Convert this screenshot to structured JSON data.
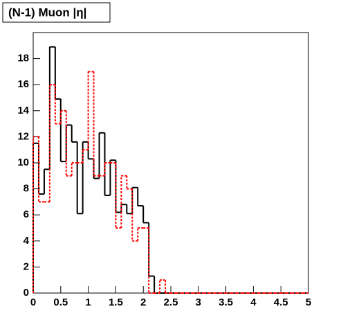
{
  "chart_data": {
    "type": "histogram",
    "title": "(N-1) Muon |η|",
    "bins": [
      0,
      0.1,
      0.2,
      0.3,
      0.4,
      0.5,
      0.6,
      0.7,
      0.8,
      0.9,
      1,
      1.1,
      1.2,
      1.3,
      1.4,
      1.5,
      1.6,
      1.7,
      1.8,
      1.9,
      2,
      2.1,
      2.2,
      2.3,
      2.4,
      2.5,
      2.6,
      2.7,
      2.8,
      2.9,
      3,
      3.1,
      3.2,
      3.3,
      3.4,
      3.5,
      3.6,
      3.7,
      3.8,
      3.9,
      4,
      4.1,
      4.2,
      4.3,
      4.4,
      4.5,
      4.6,
      4.7,
      4.8,
      4.9,
      5
    ],
    "series": [
      {
        "color": "#000000",
        "dash": false,
        "values": [
          11.5,
          7.6,
          9.5,
          18.9,
          14.9,
          10.1,
          12.9,
          11.6,
          6.1,
          11.6,
          10.3,
          8.8,
          12.3,
          7.5,
          10.2,
          6.2,
          6.8,
          6.1,
          8.1,
          6.7,
          5.4,
          1.3,
          0,
          0,
          0,
          0,
          0,
          0,
          0,
          0,
          0,
          0,
          0,
          0,
          0,
          0,
          0,
          0,
          0,
          0,
          0,
          0,
          0,
          0,
          0,
          0,
          0,
          0,
          0,
          0
        ]
      },
      {
        "color": "#ff0000",
        "dash": true,
        "values": [
          12,
          7,
          7,
          16,
          13,
          14,
          9,
          10,
          10,
          11,
          17,
          9,
          9,
          10,
          10,
          5,
          9,
          8,
          4,
          5,
          5,
          0,
          0,
          1,
          0,
          0,
          0,
          0,
          0,
          0,
          0,
          0,
          0,
          0,
          0,
          0,
          0,
          0,
          0,
          0,
          0,
          0,
          0,
          0,
          0,
          0,
          0,
          0,
          0,
          0
        ]
      }
    ],
    "xlim": [
      0,
      5
    ],
    "xticks": [
      0,
      0.5,
      1,
      1.5,
      2,
      2.5,
      3,
      3.5,
      4,
      4.5,
      5
    ],
    "ylim": [
      0,
      20
    ],
    "yticks": [
      0,
      2,
      4,
      6,
      8,
      10,
      12,
      14,
      16,
      18
    ]
  }
}
